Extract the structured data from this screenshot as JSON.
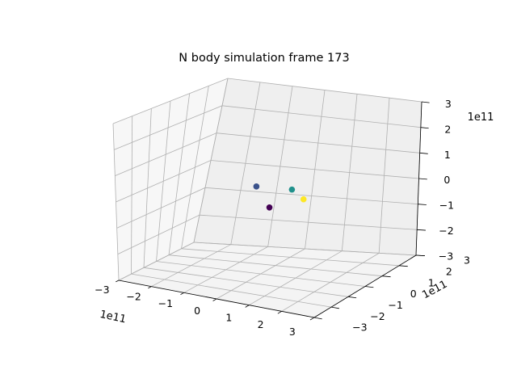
{
  "chart_data": {
    "type": "scatter",
    "projection": "3d",
    "title": "N body simulation frame 173",
    "xlabel": "",
    "ylabel": "",
    "zlabel": "",
    "x_offset_text": "1e11",
    "y_offset_text": "1e11",
    "z_offset_text": "1e11",
    "xlim": [
      -3,
      3
    ],
    "ylim": [
      -3,
      3
    ],
    "zlim": [
      -3,
      3
    ],
    "x_ticks": [
      "−3",
      "−2",
      "−1",
      "0",
      "1",
      "2",
      "3"
    ],
    "y_ticks": [
      "−3",
      "−2",
      "−1",
      "0",
      "1",
      "2",
      "3"
    ],
    "z_ticks": [
      "−3",
      "−2",
      "−1",
      "0",
      "1",
      "2",
      "3"
    ],
    "grid": true,
    "pane_color": "#f2f2f2",
    "grid_color": "#b0b0b0",
    "points": [
      {
        "x": -0.4,
        "y": 0.3,
        "z": 0.1,
        "color": "#3b528b"
      },
      {
        "x": 0.6,
        "y": 0.4,
        "z": 0.1,
        "color": "#21918c"
      },
      {
        "x": 0.3,
        "y": -0.3,
        "z": -0.4,
        "color": "#440154"
      },
      {
        "x": 1.1,
        "y": 0.1,
        "z": -0.1,
        "color": "#fde725"
      }
    ]
  }
}
